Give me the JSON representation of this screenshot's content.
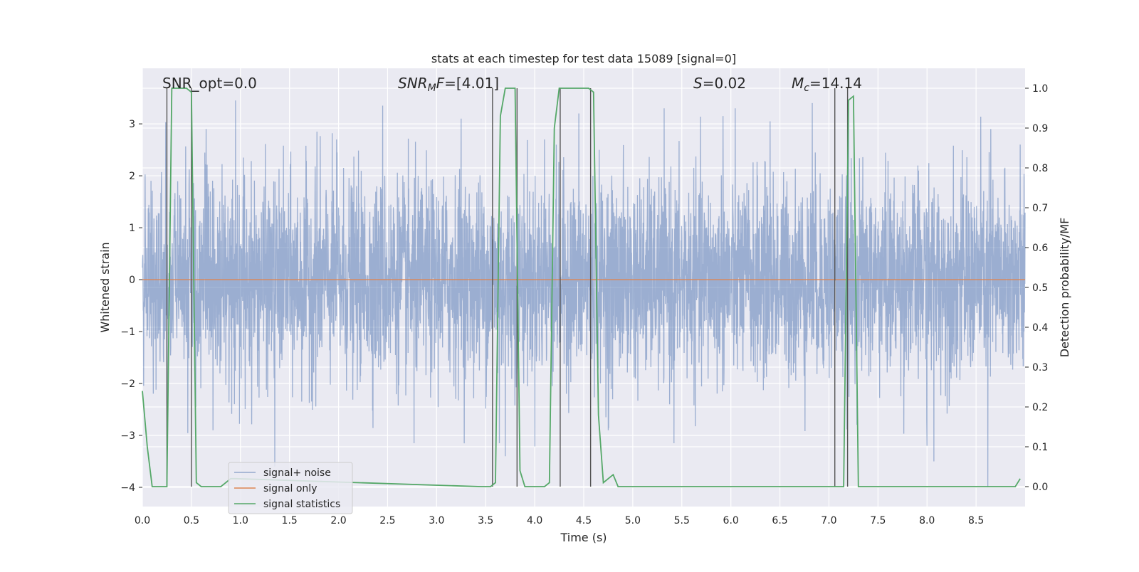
{
  "chart_data": {
    "type": "line",
    "title": "stats at each timestep for test data 15089 [signal=0]",
    "xlabel": "Time (s)",
    "ylabel": "Whitened strain",
    "ylabel_right": "Detection probability/MF",
    "xlim": [
      0.0,
      9.0
    ],
    "ylim": [
      -4.37,
      4.07
    ],
    "ylim_right": [
      -0.05,
      1.05
    ],
    "x_ticks": [
      "0.0",
      "0.5",
      "1.0",
      "1.5",
      "2.0",
      "2.5",
      "3.0",
      "3.5",
      "4.0",
      "4.5",
      "5.0",
      "5.5",
      "6.0",
      "6.5",
      "7.0",
      "7.5",
      "8.0",
      "8.5"
    ],
    "y_ticks": [
      "3",
      "2",
      "1",
      "0",
      "−1",
      "−2",
      "−3",
      "−4"
    ],
    "y_right_ticks": [
      "1.0",
      "0.9",
      "0.8",
      "0.7",
      "0.6",
      "0.5",
      "0.4",
      "0.3",
      "0.2",
      "0.1",
      "0.0"
    ],
    "grid": true,
    "legend_position": "lower-left",
    "annotations": {
      "snr_opt": "SNR_opt=0.0",
      "snr_mf_symbol": "SNR",
      "snr_mf_sub": "M",
      "snr_mf_rest": "F",
      "snr_mf_value": "=[4.01]",
      "s_symbol": "S",
      "s_value": "=0.02",
      "mc_symbol": "M",
      "mc_sub": "c",
      "mc_value": "=14.14"
    },
    "series": [
      {
        "name": "signal+ noise",
        "color": "#4c72b0",
        "description_values": "whitened noise, sampled ~uniformly from 0 to 9 s, values mostly within ±2, peaks near ±3.5",
        "x_range": [
          0.0,
          9.0
        ],
        "spikes": [
          {
            "x": 0.65,
            "y": 2.9
          },
          {
            "x": 0.72,
            "y": -2.9
          },
          {
            "x": 0.95,
            "y": 3.45
          },
          {
            "x": 1.35,
            "y": -3.6
          },
          {
            "x": 1.78,
            "y": 2.85
          },
          {
            "x": 1.98,
            "y": 2.7
          },
          {
            "x": 2.45,
            "y": 3.35
          },
          {
            "x": 2.77,
            "y": -3.15
          },
          {
            "x": 3.25,
            "y": 3.1
          },
          {
            "x": 3.64,
            "y": -3.15
          },
          {
            "x": 3.7,
            "y": -3.4
          },
          {
            "x": 4.1,
            "y": 2.7
          },
          {
            "x": 4.45,
            "y": 3.2
          },
          {
            "x": 4.75,
            "y": -2.9
          },
          {
            "x": 5.42,
            "y": -3.15
          },
          {
            "x": 5.92,
            "y": 3.15
          },
          {
            "x": 6.4,
            "y": 3.05
          },
          {
            "x": 6.83,
            "y": 3.4
          },
          {
            "x": 7.2,
            "y": 3.3
          },
          {
            "x": 8.0,
            "y": -3.2
          },
          {
            "x": 8.07,
            "y": -3.5
          },
          {
            "x": 8.62,
            "y": -4.0
          },
          {
            "x": 8.65,
            "y": 2.9
          },
          {
            "x": 8.95,
            "y": 2.6
          }
        ]
      },
      {
        "name": "signal only",
        "color": "#dd8452",
        "x": [
          0.0,
          9.0
        ],
        "y": [
          0.0,
          0.0
        ]
      },
      {
        "name": "signal statistics",
        "color": "#55a868",
        "axis": "right",
        "x": [
          0.0,
          0.05,
          0.1,
          0.15,
          0.2,
          0.25,
          0.3,
          0.35,
          0.4,
          0.45,
          0.5,
          0.55,
          0.6,
          0.65,
          0.7,
          0.75,
          0.8,
          0.85,
          0.9,
          0.95,
          3.45,
          3.5,
          3.55,
          3.6,
          3.65,
          3.7,
          3.75,
          3.8,
          3.85,
          3.9,
          3.95,
          4.0,
          4.05,
          4.1,
          4.15,
          4.2,
          4.25,
          4.3,
          4.35,
          4.4,
          4.45,
          4.5,
          4.55,
          4.6,
          4.65,
          4.7,
          4.75,
          4.8,
          4.85,
          4.9,
          4.95,
          5.0,
          7.0,
          7.05,
          7.1,
          7.15,
          7.2,
          7.25,
          7.3,
          7.35,
          7.4,
          7.45,
          7.5,
          8.8,
          8.85,
          8.9,
          8.95
        ],
        "y": [
          0.24,
          0.1,
          0.0,
          0.0,
          0.0,
          0.0,
          1.0,
          1.0,
          1.0,
          1.0,
          0.99,
          0.01,
          0.0,
          0.0,
          0.0,
          0.0,
          0.0,
          0.01,
          0.02,
          0.02,
          0.0,
          0.0,
          0.0,
          0.01,
          0.93,
          1.0,
          1.0,
          1.0,
          0.04,
          0.0,
          0.0,
          0.0,
          0.0,
          0.0,
          0.01,
          0.9,
          1.0,
          1.0,
          1.0,
          1.0,
          1.0,
          1.0,
          1.0,
          0.99,
          0.18,
          0.01,
          0.02,
          0.03,
          0.0,
          0.0,
          0.0,
          0.0,
          0.0,
          0.0,
          0.0,
          0.0,
          0.97,
          0.98,
          0.0,
          0.0,
          0.0,
          0.0,
          0.0,
          0.0,
          0.0,
          0.0,
          0.02
        ]
      }
    ],
    "vertical_markers": [
      0.25,
      0.5,
      3.57,
      3.82,
      4.26,
      4.57,
      7.06,
      7.19
    ]
  },
  "legend": {
    "items": [
      {
        "label": "signal+ noise",
        "color": "#4c72b0"
      },
      {
        "label": "signal only",
        "color": "#dd8452"
      },
      {
        "label": "signal statistics",
        "color": "#55a868"
      }
    ]
  }
}
